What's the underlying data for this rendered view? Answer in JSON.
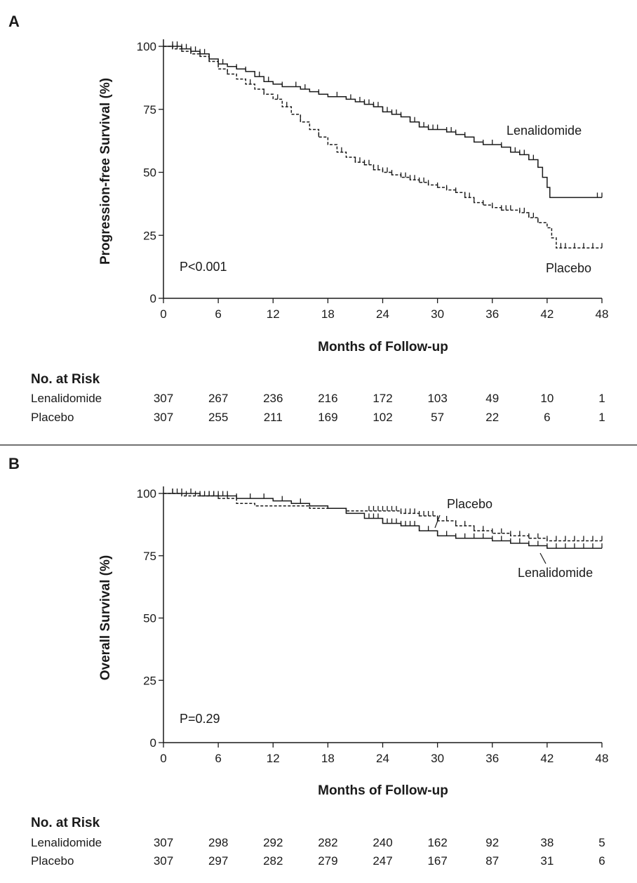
{
  "chart_data": [
    {
      "type": "line",
      "panel": "A",
      "title": "",
      "xlabel": "Months of Follow-up",
      "ylabel": "Progression-free Survival (%)",
      "xlim": [
        0,
        48
      ],
      "ylim": [
        0,
        100
      ],
      "xticks": [
        "0",
        "6",
        "12",
        "18",
        "24",
        "30",
        "36",
        "42",
        "48"
      ],
      "yticks": [
        "0",
        "25",
        "50",
        "75",
        "100"
      ],
      "pvalue": "P<0.001",
      "series": [
        {
          "name": "Lenalidomide",
          "style": "solid",
          "x": [
            0,
            1,
            2,
            3,
            4,
            5,
            6,
            7,
            8,
            9,
            10,
            11,
            12,
            13,
            14,
            15,
            16,
            17,
            18,
            19,
            20,
            21,
            22,
            23,
            24,
            25,
            26,
            27,
            28,
            29,
            30,
            31,
            32,
            33,
            34,
            35,
            36,
            37,
            38,
            39,
            40,
            41,
            41.5,
            42,
            42.3,
            48
          ],
          "y": [
            100,
            100,
            99,
            98,
            97,
            95,
            93,
            92,
            91,
            90,
            88,
            86,
            85,
            84,
            84,
            83,
            82,
            81,
            80,
            80,
            79,
            78,
            77,
            76,
            74,
            73,
            72,
            70,
            68,
            67,
            67,
            66,
            65,
            64,
            62,
            61,
            61,
            60,
            58,
            57,
            55,
            52,
            48,
            44,
            40,
            40
          ],
          "censor_x": [
            1,
            1.5,
            2,
            2.5,
            3,
            3.5,
            4,
            4.5,
            5,
            6.5,
            8,
            9,
            10.5,
            11.5,
            13,
            14.5,
            15.5,
            17,
            19,
            20.5,
            21.5,
            22,
            22.5,
            23,
            23.5,
            24,
            24.5,
            25,
            25.5,
            26,
            27,
            27.5,
            28,
            28.5,
            29,
            29.5,
            30,
            31,
            31.5,
            32,
            33,
            34,
            35,
            36,
            37,
            38,
            38.5,
            39,
            39.5,
            40,
            40.5,
            41,
            47.5,
            48
          ]
        },
        {
          "name": "Placebo",
          "style": "dashed",
          "x": [
            0,
            1,
            2,
            3,
            4,
            5,
            6,
            7,
            8,
            9,
            10,
            11,
            12,
            13,
            14,
            15,
            16,
            17,
            18,
            19,
            20,
            21,
            22,
            23,
            24,
            25,
            26,
            27,
            28,
            29,
            30,
            31,
            32,
            33,
            34,
            35,
            36,
            37,
            38,
            39,
            40,
            41,
            42,
            42.5,
            43,
            48
          ],
          "y": [
            100,
            99,
            98,
            97,
            96,
            94,
            91,
            89,
            87,
            85,
            83,
            81,
            79,
            76,
            73,
            70,
            67,
            64,
            61,
            58,
            56,
            54,
            53,
            51,
            50,
            49,
            48,
            47,
            46,
            45,
            44,
            43,
            42,
            40,
            38,
            37,
            36,
            35,
            35,
            34,
            32,
            30,
            28,
            24,
            20,
            20
          ],
          "censor_x": [
            1,
            1.5,
            2,
            3,
            4,
            5,
            7,
            9.5,
            11,
            12.5,
            13.5,
            15,
            17,
            19.5,
            21,
            21.5,
            22,
            22.5,
            23,
            23.5,
            24,
            24.5,
            25,
            26,
            26.5,
            27,
            27.5,
            28,
            28.5,
            29,
            30,
            31,
            32,
            33,
            33.5,
            34,
            35,
            36,
            37,
            37.5,
            38,
            39,
            39.5,
            40,
            40.5,
            41,
            43.5,
            44,
            45,
            46,
            47,
            48
          ]
        }
      ],
      "number_at_risk": {
        "header": "No. at Risk",
        "rows": [
          {
            "label": "Lenalidomide",
            "values": [
              "307",
              "267",
              "236",
              "216",
              "172",
              "103",
              "49",
              "10",
              "1"
            ]
          },
          {
            "label": "Placebo",
            "values": [
              "307",
              "255",
              "211",
              "169",
              "102",
              "57",
              "22",
              "6",
              "1"
            ]
          }
        ]
      }
    },
    {
      "type": "line",
      "panel": "B",
      "title": "",
      "xlabel": "Months of Follow-up",
      "ylabel": "Overall Survival (%)",
      "xlim": [
        0,
        48
      ],
      "ylim": [
        0,
        100
      ],
      "xticks": [
        "0",
        "6",
        "12",
        "18",
        "24",
        "30",
        "36",
        "42",
        "48"
      ],
      "yticks": [
        "0",
        "25",
        "50",
        "75",
        "100"
      ],
      "pvalue": "P=0.29",
      "series": [
        {
          "name": "Lenalidomide",
          "style": "solid",
          "x": [
            0,
            2,
            4,
            6,
            8,
            10,
            12,
            14,
            16,
            18,
            20,
            22,
            24,
            26,
            28,
            30,
            32,
            34,
            36,
            38,
            40,
            42,
            44,
            46,
            48
          ],
          "y": [
            100,
            100,
            99,
            99,
            98,
            98,
            97,
            96,
            95,
            94,
            92,
            90,
            88,
            87,
            85,
            83,
            82,
            82,
            81,
            80,
            79,
            78,
            78,
            78,
            78
          ],
          "censor_x": [
            1,
            2,
            3,
            4,
            5,
            5.5,
            6,
            6.5,
            7,
            8,
            9.5,
            11,
            13,
            15,
            22.5,
            23,
            23.5,
            24,
            24.5,
            25,
            25.5,
            26,
            26.5,
            27,
            27.5,
            28,
            29,
            30,
            31,
            32,
            33,
            34,
            35,
            36,
            37,
            38,
            39,
            40,
            41,
            42,
            43,
            44,
            45,
            46,
            47,
            48
          ]
        },
        {
          "name": "Placebo",
          "style": "dashed",
          "x": [
            0,
            2,
            4,
            6,
            8,
            10,
            12,
            14,
            16,
            18,
            20,
            22,
            24,
            26,
            28,
            30,
            32,
            34,
            36,
            38,
            40,
            42,
            44,
            46,
            48
          ],
          "y": [
            100,
            99,
            99,
            98,
            96,
            95,
            95,
            95,
            94,
            94,
            93,
            93,
            93,
            92,
            91,
            89,
            87,
            85,
            84,
            83,
            82,
            81,
            81,
            81,
            81
          ],
          "censor_x": [
            1,
            1.5,
            2.5,
            3.5,
            4.5,
            5,
            5.5,
            6,
            7,
            22.5,
            23,
            23.5,
            24,
            24.5,
            25,
            25.5,
            26,
            26.5,
            27,
            27.5,
            28,
            28.5,
            29,
            29.5,
            30,
            31,
            32,
            33,
            34,
            35,
            36,
            37,
            38,
            39,
            40,
            41,
            42,
            43,
            44,
            45,
            46,
            47,
            48
          ]
        }
      ],
      "number_at_risk": {
        "header": "No. at Risk",
        "rows": [
          {
            "label": "Lenalidomide",
            "values": [
              "307",
              "298",
              "292",
              "282",
              "240",
              "162",
              "92",
              "38",
              "5"
            ]
          },
          {
            "label": "Placebo",
            "values": [
              "307",
              "297",
              "282",
              "279",
              "247",
              "167",
              "87",
              "31",
              "6"
            ]
          }
        ]
      }
    }
  ]
}
